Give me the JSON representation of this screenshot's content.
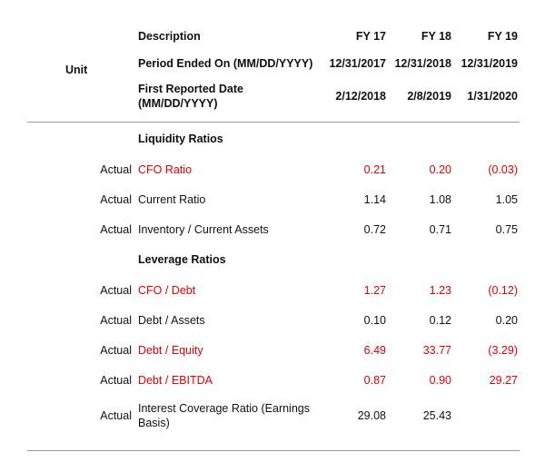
{
  "colors": {
    "highlight_red": "#e60000",
    "divider": "#9a9a9a",
    "text": "#111111"
  },
  "header": {
    "unit_label": "Unit",
    "columns": {
      "description": "Description",
      "fy17": "FY 17",
      "fy18": "FY 18",
      "fy19": "FY 19"
    },
    "period_ended": {
      "label": "Period Ended On (MM/DD/YYYY)",
      "values": [
        "12/31/2017",
        "12/31/2018",
        "12/31/2019"
      ]
    },
    "first_reported": {
      "label": "First Reported Date (MM/DD/YYYY)",
      "values": [
        "2/12/2018",
        "2/8/2019",
        "1/31/2020"
      ]
    }
  },
  "sections": [
    {
      "title": "Liquidity Ratios",
      "rows": [
        {
          "type": "Actual",
          "description": "CFO Ratio",
          "values": [
            "0.21",
            "0.20",
            "(0.03)"
          ],
          "highlight": true
        },
        {
          "type": "Actual",
          "description": "Current Ratio",
          "values": [
            "1.14",
            "1.08",
            "1.05"
          ],
          "highlight": false
        },
        {
          "type": "Actual",
          "description": "Inventory / Current Assets",
          "values": [
            "0.72",
            "0.71",
            "0.75"
          ],
          "highlight": false
        }
      ]
    },
    {
      "title": "Leverage Ratios",
      "rows": [
        {
          "type": "Actual",
          "description": "CFO / Debt",
          "values": [
            "1.27",
            "1.23",
            "(0.12)"
          ],
          "highlight": true
        },
        {
          "type": "Actual",
          "description": "Debt / Assets",
          "values": [
            "0.10",
            "0.12",
            "0.20"
          ],
          "highlight": false
        },
        {
          "type": "Actual",
          "description": "Debt / Equity",
          "values": [
            "6.49",
            "33.77",
            "(3.29)"
          ],
          "highlight": true
        },
        {
          "type": "Actual",
          "description": "Debt / EBITDA",
          "values": [
            "0.87",
            "0.90",
            "29.27"
          ],
          "highlight": true
        },
        {
          "type": "Actual",
          "description": "Interest Coverage Ratio (Earnings Basis)",
          "values": [
            "29.08",
            "25.43",
            ""
          ],
          "highlight": false
        }
      ]
    }
  ]
}
